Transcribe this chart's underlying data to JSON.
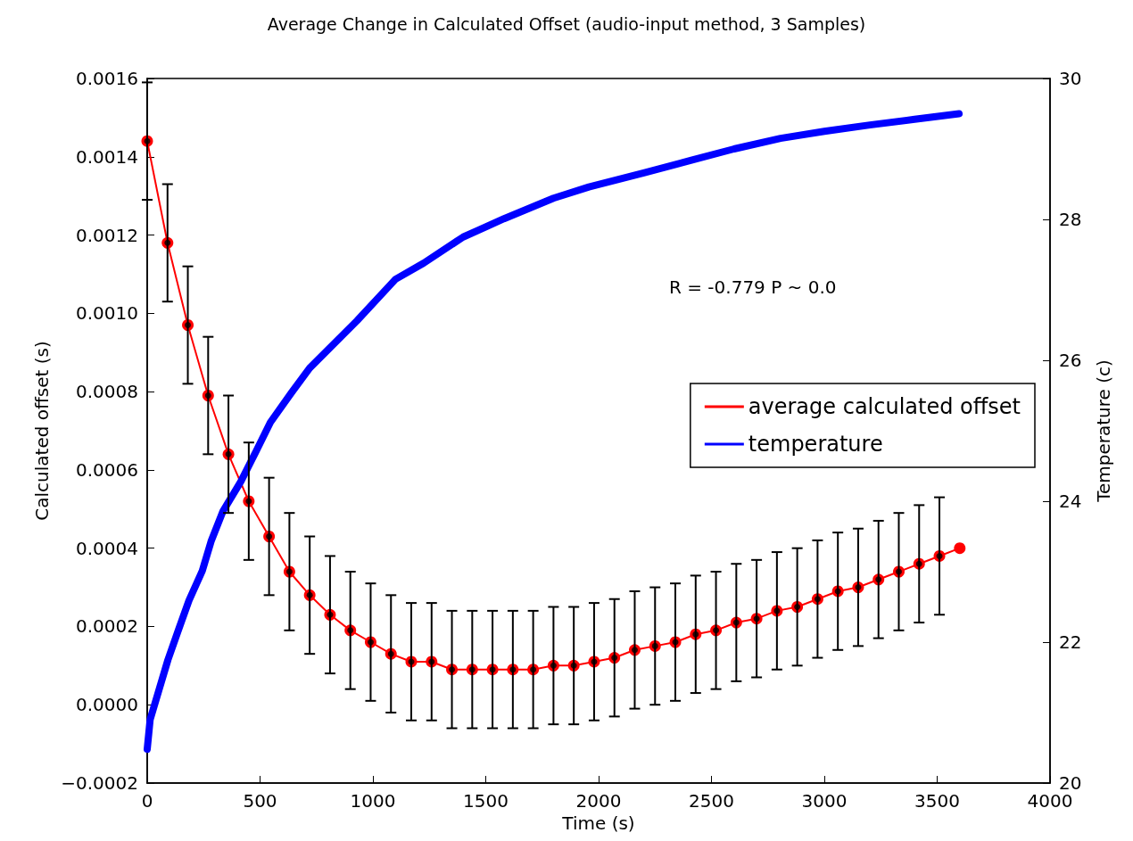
{
  "chart_data": {
    "type": "line",
    "title": "Average Change in Calculated Offset (audio-input method, 3 Samples)",
    "xlabel": "Time (s)",
    "ylabel": "Calculated offset (s)",
    "y2label": "Temperature (c)",
    "annotations": [
      "R = -0.779 P ~ 0.0"
    ],
    "legend": "right",
    "xlim": [
      0,
      4000
    ],
    "xticks": [
      0,
      500,
      1000,
      1500,
      2000,
      2500,
      3000,
      3500,
      4000
    ],
    "ylim": [
      -0.0002,
      0.0016
    ],
    "yticks": [
      {
        "value": -0.0002,
        "label": "−0.0002"
      },
      {
        "value": 0,
        "label": "0.0000"
      },
      0.0002,
      0.0004,
      0.0006,
      0.0008,
      {
        "value": 0.001,
        "label": "0.0010"
      },
      0.0012,
      0.0014,
      0.0016
    ],
    "y2lim": [
      20,
      30
    ],
    "y2ticks": [
      20,
      22,
      24,
      26,
      28,
      30
    ],
    "series": [
      {
        "name": "average calculated offset",
        "color": "#ff0000",
        "marker": "circle",
        "x": [
          0,
          90,
          180,
          270,
          360,
          450,
          540,
          630,
          720,
          810,
          900,
          990,
          1080,
          1170,
          1260,
          1350,
          1440,
          1530,
          1620,
          1710,
          1800,
          1890,
          1980,
          2070,
          2160,
          2250,
          2340,
          2430,
          2520,
          2610,
          2700,
          2790,
          2880,
          2970,
          3060,
          3150,
          3240,
          3330,
          3420,
          3510,
          3600
        ],
        "values": [
          0.00144,
          0.00118,
          0.00097,
          0.00079,
          0.00064,
          0.00052,
          0.00043,
          0.00034,
          0.00028,
          0.00023,
          0.00019,
          0.00016,
          0.00013,
          0.00011,
          0.00011,
          9e-05,
          9e-05,
          9e-05,
          9e-05,
          9e-05,
          0.0001,
          0.0001,
          0.00011,
          0.00012,
          0.00014,
          0.00015,
          0.00016,
          0.00018,
          0.00019,
          0.00021,
          0.00022,
          0.00024,
          0.00025,
          0.00027,
          0.00029,
          0.0003,
          0.00032,
          0.00034,
          0.00036,
          0.00038,
          0.0004
        ]
      },
      {
        "name": "temperature",
        "color": "#0000ff",
        "axis": "y2",
        "marker": "none",
        "x": [
          0,
          13,
          53,
          92,
          138,
          185,
          244,
          283,
          336,
          415,
          481,
          546,
          639,
          720,
          929,
          1100,
          1225,
          1400,
          1581,
          1800,
          1957,
          2200,
          2411,
          2600,
          2806,
          3000,
          3202,
          3400,
          3597
        ],
        "values": [
          20.48,
          20.9,
          21.33,
          21.75,
          22.17,
          22.59,
          23.01,
          23.43,
          23.86,
          24.28,
          24.7,
          25.12,
          25.54,
          25.89,
          26.56,
          27.15,
          27.38,
          27.75,
          28.01,
          28.3,
          28.46,
          28.66,
          28.84,
          29.0,
          29.15,
          29.25,
          29.34,
          29.42,
          29.5
        ]
      },
      {
        "type": "scatter",
        "color": "#000000",
        "marker": "circle",
        "x": [
          0,
          90,
          180,
          270,
          360,
          450,
          540,
          630,
          720,
          810,
          900,
          990,
          1080,
          1170,
          1260,
          1350,
          1440,
          1530,
          1620,
          1710,
          1800,
          1890,
          1980,
          2070,
          2160,
          2250,
          2340,
          2430,
          2520,
          2610,
          2700,
          2790,
          2880,
          2970,
          3060,
          3150,
          3240,
          3330,
          3420,
          3510
        ],
        "values": [
          0.00144,
          0.00118,
          0.00097,
          0.00079,
          0.00064,
          0.00052,
          0.00043,
          0.00034,
          0.00028,
          0.00023,
          0.00019,
          0.00016,
          0.00013,
          0.00011,
          0.00011,
          9e-05,
          9e-05,
          9e-05,
          9e-05,
          9e-05,
          0.0001,
          0.0001,
          0.00011,
          0.00012,
          0.00014,
          0.00015,
          0.00016,
          0.00018,
          0.00019,
          0.00021,
          0.00022,
          0.00024,
          0.00025,
          0.00027,
          0.00029,
          0.0003,
          0.00032,
          0.00034,
          0.00036,
          0.00038
        ],
        "errors": [
          0.00015,
          0.00015,
          0.00015,
          0.00015,
          0.00015,
          0.00015,
          0.00015,
          0.00015,
          0.00015,
          0.00015,
          0.00015,
          0.00015,
          0.00015,
          0.00015,
          0.00015,
          0.00015,
          0.00015,
          0.00015,
          0.00015,
          0.00015,
          0.00015,
          0.00015,
          0.00015,
          0.00015,
          0.00015,
          0.00015,
          0.00015,
          0.00015,
          0.00015,
          0.00015,
          0.00015,
          0.00015,
          0.00015,
          0.00015,
          0.00015,
          0.00015,
          0.00015,
          0.00015,
          0.00015,
          0.00015
        ]
      }
    ]
  }
}
